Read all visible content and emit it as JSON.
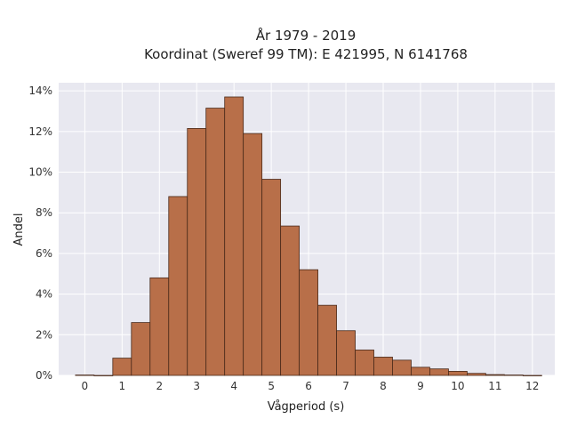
{
  "chart_data": {
    "type": "bar",
    "title": "År 1979 - 2019",
    "subtitle": "Koordinat (Sweref 99 TM): E 421995, N 6141768",
    "xlabel": "Vågperiod (s)",
    "ylabel": "Andel",
    "xlim": [
      -0.7,
      12.6
    ],
    "ylim": [
      0,
      14.4
    ],
    "x_ticks": [
      0,
      1,
      2,
      3,
      4,
      5,
      6,
      7,
      8,
      9,
      10,
      11,
      12
    ],
    "y_ticks": [
      0,
      2,
      4,
      6,
      8,
      10,
      12,
      14
    ],
    "y_tick_labels": [
      "0%",
      "2%",
      "4%",
      "6%",
      "8%",
      "10%",
      "12%",
      "14%"
    ],
    "bin_width": 0.5,
    "bin_starts": [
      -0.25,
      0.25,
      0.75,
      1.25,
      1.75,
      2.25,
      2.75,
      3.25,
      3.75,
      4.25,
      4.75,
      5.25,
      5.75,
      6.25,
      6.75,
      7.25,
      7.75,
      8.25,
      8.75,
      9.25,
      9.75,
      10.25,
      10.75,
      11.25,
      11.75
    ],
    "values": [
      0.02,
      0.0,
      0.85,
      2.6,
      4.8,
      8.8,
      12.15,
      13.15,
      13.7,
      11.9,
      9.65,
      7.35,
      5.2,
      3.45,
      2.2,
      1.25,
      0.9,
      0.75,
      0.4,
      0.32,
      0.2,
      0.1,
      0.04,
      0.02,
      0.0
    ],
    "grid": true,
    "colors": {
      "bar_fill": "#b86f49",
      "bar_edge": "#4a2a1a",
      "plot_background": "#e8e8f0",
      "grid": "#ffffff"
    }
  }
}
